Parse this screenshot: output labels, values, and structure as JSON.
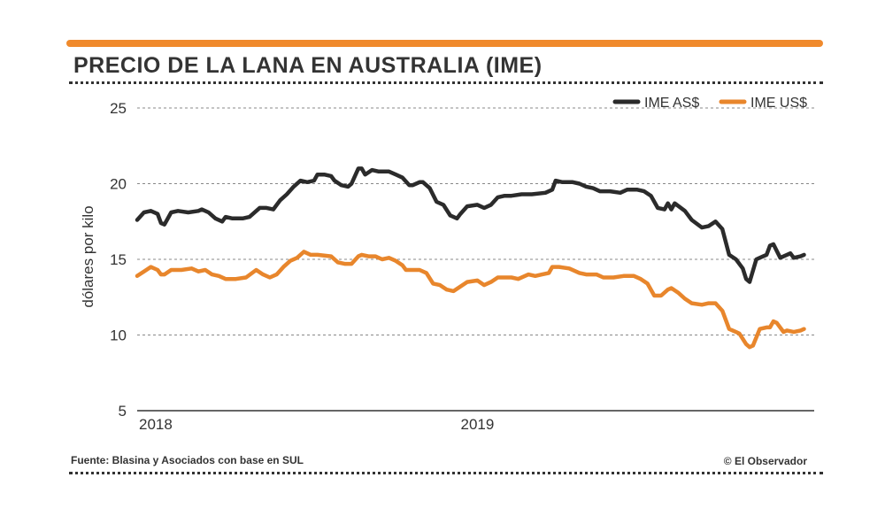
{
  "header": {
    "title": "PRECIO DE LA LANA EN AUSTRALIA (IME)"
  },
  "footer": {
    "source": "Fuente: Blasina y Asociados con base en SUL",
    "credit": "© El Observador"
  },
  "colors": {
    "accent": "#f08a2c",
    "series_dark": "#2b2b2b",
    "series_orange": "#e8862c"
  },
  "chart_data": {
    "type": "line",
    "title": "PRECIO DE LA LANA EN AUSTRALIA (IME)",
    "ylabel": "dólares por kilo",
    "xlabel": "",
    "ylim": [
      5,
      25
    ],
    "yticks": [
      5,
      10,
      15,
      20,
      25
    ],
    "xlim": [
      2018.0,
      2019.99
    ],
    "xticks": [
      {
        "value": 2018.0,
        "label": "2018"
      },
      {
        "value": 2019.0,
        "label": "2019"
      }
    ],
    "grid": "horizontal dotted",
    "legend": "top-right",
    "series": [
      {
        "name": "IME AS$",
        "color": "#2b2b2b",
        "points": [
          [
            2018.0,
            17.6
          ],
          [
            2018.02,
            18.1
          ],
          [
            2018.04,
            18.2
          ],
          [
            2018.06,
            18.0
          ],
          [
            2018.07,
            17.4
          ],
          [
            2018.08,
            17.3
          ],
          [
            2018.1,
            18.1
          ],
          [
            2018.12,
            18.2
          ],
          [
            2018.15,
            18.1
          ],
          [
            2018.18,
            18.2
          ],
          [
            2018.19,
            18.3
          ],
          [
            2018.21,
            18.1
          ],
          [
            2018.23,
            17.7
          ],
          [
            2018.25,
            17.5
          ],
          [
            2018.26,
            17.8
          ],
          [
            2018.28,
            17.7
          ],
          [
            2018.31,
            17.7
          ],
          [
            2018.33,
            17.8
          ],
          [
            2018.36,
            18.4
          ],
          [
            2018.38,
            18.4
          ],
          [
            2018.4,
            18.3
          ],
          [
            2018.42,
            18.9
          ],
          [
            2018.44,
            19.3
          ],
          [
            2018.46,
            19.8
          ],
          [
            2018.48,
            20.2
          ],
          [
            2018.5,
            20.1
          ],
          [
            2018.52,
            20.2
          ],
          [
            2018.53,
            20.6
          ],
          [
            2018.55,
            20.6
          ],
          [
            2018.57,
            20.5
          ],
          [
            2018.58,
            20.2
          ],
          [
            2018.6,
            19.9
          ],
          [
            2018.62,
            19.8
          ],
          [
            2018.63,
            20.0
          ],
          [
            2018.65,
            21.0
          ],
          [
            2018.66,
            21.0
          ],
          [
            2018.67,
            20.6
          ],
          [
            2018.69,
            20.9
          ],
          [
            2018.71,
            20.8
          ],
          [
            2018.74,
            20.8
          ],
          [
            2018.76,
            20.6
          ],
          [
            2018.78,
            20.4
          ],
          [
            2018.8,
            19.9
          ],
          [
            2018.81,
            19.9
          ],
          [
            2018.83,
            20.1
          ],
          [
            2018.84,
            20.1
          ],
          [
            2018.86,
            19.7
          ],
          [
            2018.88,
            18.8
          ],
          [
            2018.9,
            18.6
          ],
          [
            2018.92,
            17.9
          ],
          [
            2018.94,
            17.7
          ],
          [
            2018.95,
            18.0
          ],
          [
            2018.97,
            18.5
          ],
          [
            2019.0,
            18.6
          ],
          [
            2019.02,
            18.4
          ],
          [
            2019.04,
            18.6
          ],
          [
            2019.06,
            19.1
          ],
          [
            2019.08,
            19.2
          ],
          [
            2019.1,
            19.2
          ],
          [
            2019.13,
            19.3
          ],
          [
            2019.16,
            19.3
          ],
          [
            2019.2,
            19.4
          ],
          [
            2019.22,
            19.6
          ],
          [
            2019.23,
            20.2
          ],
          [
            2019.25,
            20.1
          ],
          [
            2019.28,
            20.1
          ],
          [
            2019.3,
            20.0
          ],
          [
            2019.32,
            19.8
          ],
          [
            2019.34,
            19.7
          ],
          [
            2019.36,
            19.5
          ],
          [
            2019.39,
            19.5
          ],
          [
            2019.42,
            19.4
          ],
          [
            2019.44,
            19.6
          ],
          [
            2019.47,
            19.6
          ],
          [
            2019.49,
            19.5
          ],
          [
            2019.51,
            19.2
          ],
          [
            2019.53,
            18.4
          ],
          [
            2019.55,
            18.3
          ],
          [
            2019.56,
            18.7
          ],
          [
            2019.57,
            18.3
          ],
          [
            2019.58,
            18.7
          ],
          [
            2019.61,
            18.2
          ],
          [
            2019.63,
            17.6
          ],
          [
            2019.66,
            17.1
          ],
          [
            2019.68,
            17.2
          ],
          [
            2019.7,
            17.5
          ],
          [
            2019.72,
            17.0
          ],
          [
            2019.74,
            15.3
          ],
          [
            2019.76,
            15.0
          ],
          [
            2019.78,
            14.4
          ],
          [
            2019.79,
            13.7
          ],
          [
            2019.8,
            13.5
          ],
          [
            2019.82,
            15.0
          ],
          [
            2019.84,
            15.2
          ],
          [
            2019.85,
            15.3
          ],
          [
            2019.86,
            15.9
          ],
          [
            2019.87,
            16.0
          ],
          [
            2019.89,
            15.1
          ],
          [
            2019.91,
            15.3
          ],
          [
            2019.92,
            15.4
          ],
          [
            2019.93,
            15.1
          ],
          [
            2019.95,
            15.2
          ],
          [
            2019.96,
            15.3
          ]
        ]
      },
      {
        "name": "IME US$",
        "color": "#e8862c",
        "points": [
          [
            2018.0,
            13.9
          ],
          [
            2018.02,
            14.2
          ],
          [
            2018.04,
            14.5
          ],
          [
            2018.06,
            14.3
          ],
          [
            2018.07,
            14.0
          ],
          [
            2018.08,
            14.0
          ],
          [
            2018.1,
            14.3
          ],
          [
            2018.13,
            14.3
          ],
          [
            2018.16,
            14.4
          ],
          [
            2018.18,
            14.2
          ],
          [
            2018.2,
            14.3
          ],
          [
            2018.22,
            14.0
          ],
          [
            2018.24,
            13.9
          ],
          [
            2018.26,
            13.7
          ],
          [
            2018.29,
            13.7
          ],
          [
            2018.32,
            13.8
          ],
          [
            2018.35,
            14.3
          ],
          [
            2018.37,
            14.0
          ],
          [
            2018.39,
            13.8
          ],
          [
            2018.41,
            14.0
          ],
          [
            2018.43,
            14.5
          ],
          [
            2018.45,
            14.9
          ],
          [
            2018.47,
            15.1
          ],
          [
            2018.49,
            15.5
          ],
          [
            2018.51,
            15.3
          ],
          [
            2018.53,
            15.3
          ],
          [
            2018.57,
            15.2
          ],
          [
            2018.59,
            14.8
          ],
          [
            2018.61,
            14.7
          ],
          [
            2018.63,
            14.7
          ],
          [
            2018.65,
            15.2
          ],
          [
            2018.66,
            15.3
          ],
          [
            2018.68,
            15.2
          ],
          [
            2018.7,
            15.2
          ],
          [
            2018.72,
            15.0
          ],
          [
            2018.74,
            15.1
          ],
          [
            2018.76,
            14.9
          ],
          [
            2018.78,
            14.6
          ],
          [
            2018.79,
            14.3
          ],
          [
            2018.81,
            14.3
          ],
          [
            2018.83,
            14.3
          ],
          [
            2018.85,
            14.1
          ],
          [
            2018.87,
            13.4
          ],
          [
            2018.89,
            13.3
          ],
          [
            2018.91,
            13.0
          ],
          [
            2018.93,
            12.9
          ],
          [
            2018.95,
            13.2
          ],
          [
            2018.97,
            13.5
          ],
          [
            2019.0,
            13.6
          ],
          [
            2019.02,
            13.3
          ],
          [
            2019.04,
            13.5
          ],
          [
            2019.06,
            13.8
          ],
          [
            2019.08,
            13.8
          ],
          [
            2019.1,
            13.8
          ],
          [
            2019.12,
            13.7
          ],
          [
            2019.15,
            14.0
          ],
          [
            2019.17,
            13.9
          ],
          [
            2019.19,
            14.0
          ],
          [
            2019.21,
            14.1
          ],
          [
            2019.22,
            14.5
          ],
          [
            2019.24,
            14.5
          ],
          [
            2019.27,
            14.4
          ],
          [
            2019.3,
            14.1
          ],
          [
            2019.32,
            14.0
          ],
          [
            2019.35,
            14.0
          ],
          [
            2019.37,
            13.8
          ],
          [
            2019.4,
            13.8
          ],
          [
            2019.43,
            13.9
          ],
          [
            2019.46,
            13.9
          ],
          [
            2019.48,
            13.7
          ],
          [
            2019.5,
            13.4
          ],
          [
            2019.52,
            12.6
          ],
          [
            2019.54,
            12.6
          ],
          [
            2019.56,
            13.0
          ],
          [
            2019.57,
            13.1
          ],
          [
            2019.59,
            12.8
          ],
          [
            2019.61,
            12.4
          ],
          [
            2019.63,
            12.1
          ],
          [
            2019.66,
            12.0
          ],
          [
            2019.68,
            12.1
          ],
          [
            2019.7,
            12.1
          ],
          [
            2019.72,
            11.6
          ],
          [
            2019.74,
            10.4
          ],
          [
            2019.76,
            10.2
          ],
          [
            2019.77,
            10.1
          ],
          [
            2019.79,
            9.4
          ],
          [
            2019.8,
            9.2
          ],
          [
            2019.81,
            9.3
          ],
          [
            2019.83,
            10.4
          ],
          [
            2019.85,
            10.5
          ],
          [
            2019.86,
            10.5
          ],
          [
            2019.87,
            10.9
          ],
          [
            2019.88,
            10.8
          ],
          [
            2019.9,
            10.2
          ],
          [
            2019.91,
            10.3
          ],
          [
            2019.93,
            10.2
          ],
          [
            2019.95,
            10.3
          ],
          [
            2019.96,
            10.4
          ]
        ]
      }
    ]
  }
}
